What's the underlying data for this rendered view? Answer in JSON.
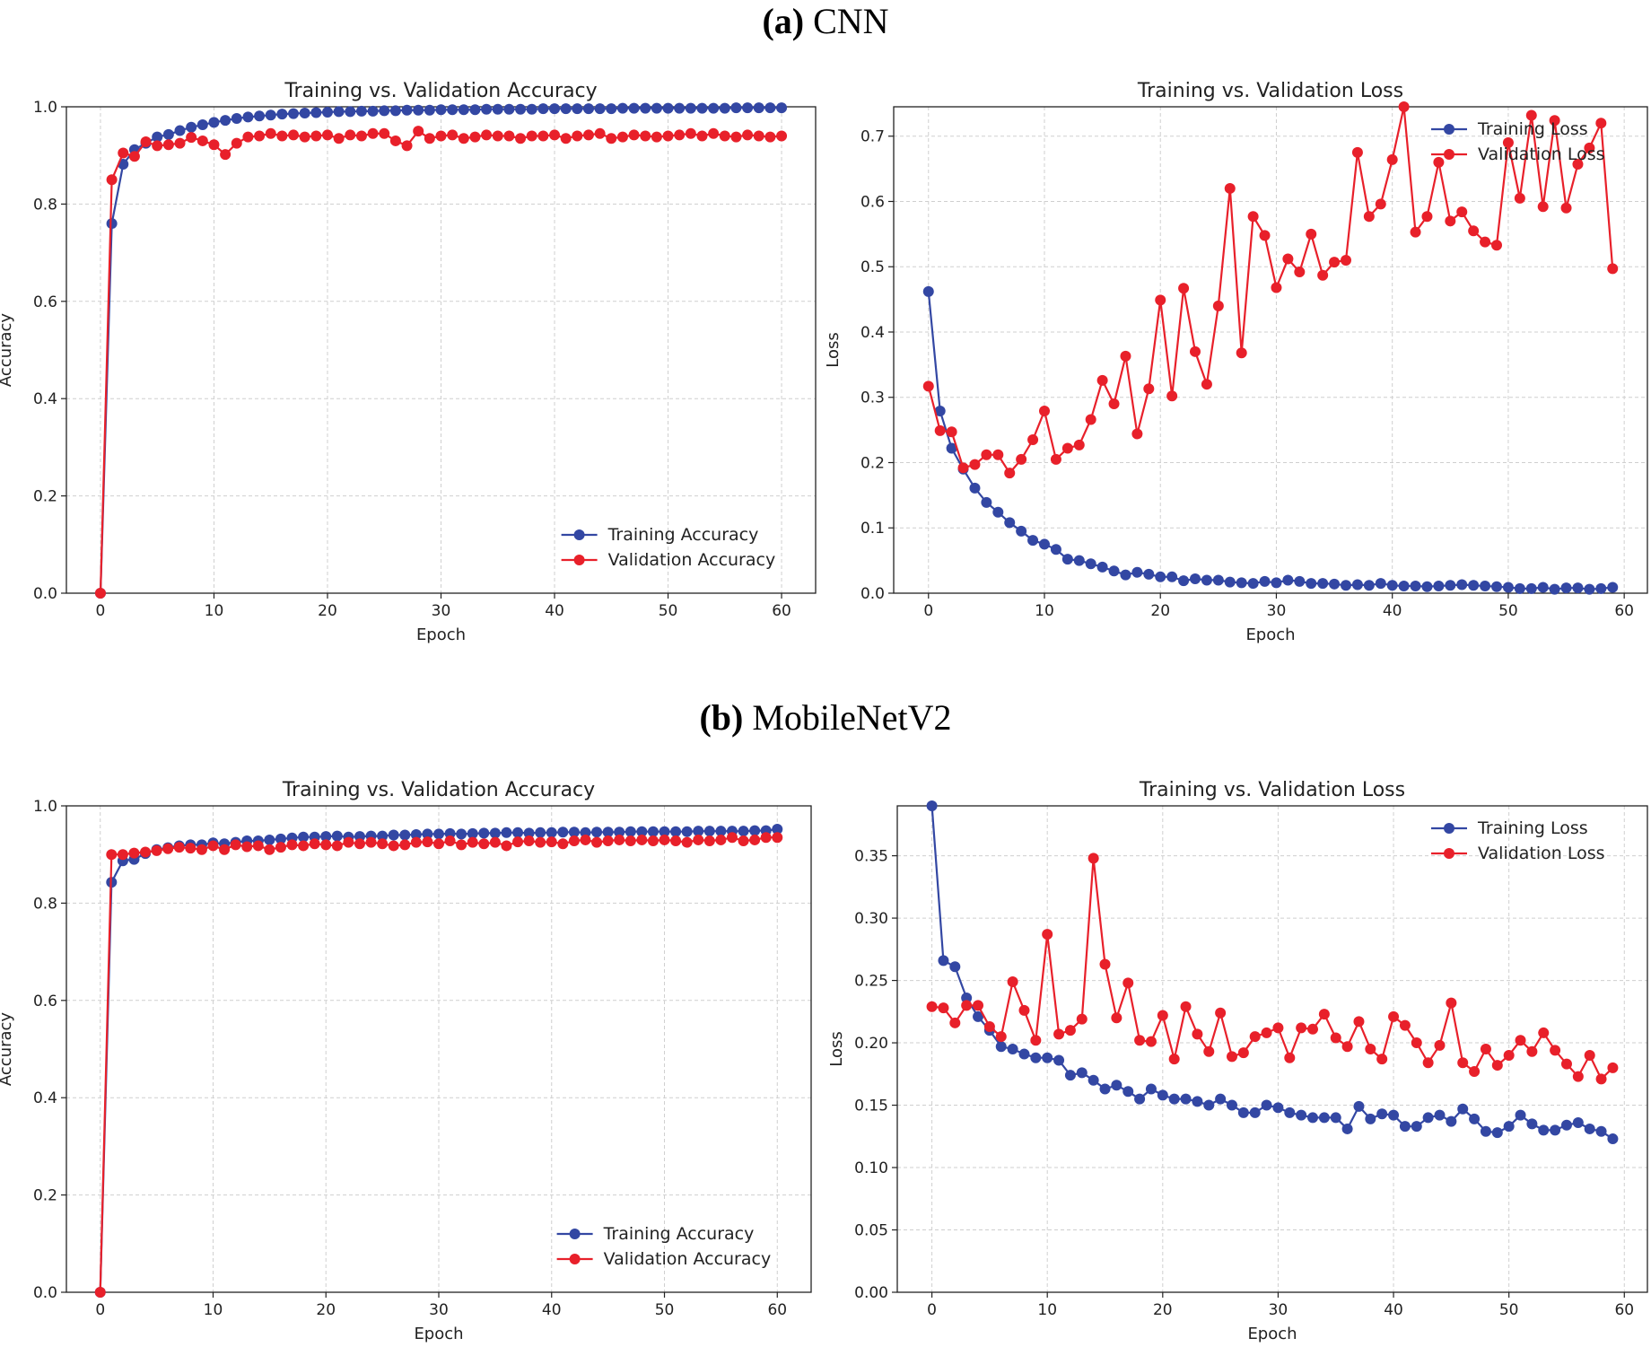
{
  "captions": {
    "a": {
      "letter": "(a)",
      "name": "CNN"
    },
    "b": {
      "letter": "(b)",
      "name": "MobileNetV2"
    }
  },
  "colors": {
    "training": "#3347a3",
    "validation": "#e8202a"
  },
  "chart_data": [
    {
      "id": "cnn-acc",
      "type": "line",
      "title": "Training vs. Validation Accuracy",
      "xlabel": "Epoch",
      "ylabel": "Accuracy",
      "xlim": [
        -3,
        63
      ],
      "ylim": [
        0,
        1.0
      ],
      "xticks": [
        0,
        10,
        20,
        30,
        40,
        50,
        60
      ],
      "yticks": [
        0.0,
        0.2,
        0.4,
        0.6,
        0.8,
        1.0
      ],
      "ytick_labels": [
        "0.0",
        "0.2",
        "0.4",
        "0.6",
        "0.8",
        "1.0"
      ],
      "legend": "lower-right",
      "grid": true,
      "x": [
        0,
        1,
        2,
        3,
        4,
        5,
        6,
        7,
        8,
        9,
        10,
        11,
        12,
        13,
        14,
        15,
        16,
        17,
        18,
        19,
        20,
        21,
        22,
        23,
        24,
        25,
        26,
        27,
        28,
        29,
        30,
        31,
        32,
        33,
        34,
        35,
        36,
        37,
        38,
        39,
        40,
        41,
        42,
        43,
        44,
        45,
        46,
        47,
        48,
        49,
        50,
        51,
        52,
        53,
        54,
        55,
        56,
        57,
        58,
        59,
        60
      ],
      "series": [
        {
          "name": "Training Accuracy",
          "color_key": "training",
          "values": [
            0.0,
            0.76,
            0.882,
            0.912,
            0.925,
            0.938,
            0.943,
            0.951,
            0.958,
            0.963,
            0.968,
            0.972,
            0.976,
            0.979,
            0.981,
            0.983,
            0.985,
            0.986,
            0.987,
            0.988,
            0.989,
            0.99,
            0.99,
            0.991,
            0.991,
            0.992,
            0.992,
            0.993,
            0.993,
            0.993,
            0.994,
            0.994,
            0.994,
            0.994,
            0.995,
            0.995,
            0.995,
            0.995,
            0.995,
            0.996,
            0.996,
            0.996,
            0.996,
            0.996,
            0.996,
            0.996,
            0.997,
            0.997,
            0.997,
            0.997,
            0.997,
            0.997,
            0.997,
            0.997,
            0.997,
            0.997,
            0.998,
            0.998,
            0.998,
            0.998,
            0.998
          ]
        },
        {
          "name": "Validation Accuracy",
          "color_key": "validation",
          "values": [
            0.0,
            0.85,
            0.905,
            0.898,
            0.928,
            0.92,
            0.922,
            0.925,
            0.937,
            0.93,
            0.922,
            0.902,
            0.925,
            0.938,
            0.94,
            0.945,
            0.94,
            0.942,
            0.938,
            0.94,
            0.942,
            0.935,
            0.942,
            0.94,
            0.945,
            0.945,
            0.93,
            0.92,
            0.95,
            0.935,
            0.94,
            0.942,
            0.935,
            0.938,
            0.942,
            0.94,
            0.94,
            0.935,
            0.94,
            0.94,
            0.942,
            0.935,
            0.94,
            0.942,
            0.945,
            0.935,
            0.938,
            0.942,
            0.94,
            0.938,
            0.94,
            0.942,
            0.945,
            0.94,
            0.945,
            0.94,
            0.938,
            0.942,
            0.94,
            0.938,
            0.94
          ]
        }
      ]
    },
    {
      "id": "cnn-loss",
      "type": "line",
      "title": "Training vs. Validation Loss",
      "xlabel": "Epoch",
      "ylabel": "Loss",
      "xlim": [
        -3,
        62
      ],
      "ylim": [
        0,
        0.745
      ],
      "xticks": [
        0,
        10,
        20,
        30,
        40,
        50,
        60
      ],
      "yticks": [
        0.0,
        0.1,
        0.2,
        0.3,
        0.4,
        0.5,
        0.6,
        0.7
      ],
      "ytick_labels": [
        "0.0",
        "0.1",
        "0.2",
        "0.3",
        "0.4",
        "0.5",
        "0.6",
        "0.7"
      ],
      "legend": "top-right",
      "grid": true,
      "x": [
        0,
        1,
        2,
        3,
        4,
        5,
        6,
        7,
        8,
        9,
        10,
        11,
        12,
        13,
        14,
        15,
        16,
        17,
        18,
        19,
        20,
        21,
        22,
        23,
        24,
        25,
        26,
        27,
        28,
        29,
        30,
        31,
        32,
        33,
        34,
        35,
        36,
        37,
        38,
        39,
        40,
        41,
        42,
        43,
        44,
        45,
        46,
        47,
        48,
        49,
        50,
        51,
        52,
        53,
        54,
        55,
        56,
        57,
        58,
        59
      ],
      "series": [
        {
          "name": "Training Loss",
          "color_key": "training",
          "values": [
            0.462,
            0.279,
            0.222,
            0.19,
            0.161,
            0.139,
            0.124,
            0.108,
            0.095,
            0.081,
            0.075,
            0.067,
            0.052,
            0.05,
            0.045,
            0.04,
            0.034,
            0.028,
            0.032,
            0.029,
            0.025,
            0.025,
            0.019,
            0.022,
            0.02,
            0.02,
            0.017,
            0.016,
            0.015,
            0.018,
            0.016,
            0.02,
            0.018,
            0.015,
            0.015,
            0.014,
            0.012,
            0.013,
            0.012,
            0.015,
            0.012,
            0.011,
            0.011,
            0.01,
            0.011,
            0.012,
            0.013,
            0.012,
            0.011,
            0.01,
            0.009,
            0.007,
            0.007,
            0.009,
            0.006,
            0.008,
            0.008,
            0.006,
            0.007,
            0.009
          ]
        },
        {
          "name": "Validation Loss",
          "color_key": "validation",
          "values": [
            0.317,
            0.249,
            0.247,
            0.192,
            0.197,
            0.212,
            0.212,
            0.184,
            0.205,
            0.235,
            0.279,
            0.205,
            0.222,
            0.227,
            0.266,
            0.326,
            0.29,
            0.363,
            0.244,
            0.313,
            0.449,
            0.302,
            0.467,
            0.37,
            0.32,
            0.44,
            0.62,
            0.368,
            0.577,
            0.548,
            0.468,
            0.512,
            0.492,
            0.55,
            0.487,
            0.507,
            0.51,
            0.675,
            0.577,
            0.596,
            0.664,
            0.745,
            0.553,
            0.577,
            0.66,
            0.57,
            0.584,
            0.555,
            0.538,
            0.533,
            0.69,
            0.605,
            0.732,
            0.592,
            0.724,
            0.59,
            0.657,
            0.682,
            0.72,
            0.497
          ]
        }
      ]
    },
    {
      "id": "mnv2-acc",
      "type": "line",
      "title": "Training vs. Validation Accuracy",
      "xlabel": "Epoch",
      "ylabel": "Accuracy",
      "xlim": [
        -3,
        63
      ],
      "ylim": [
        0,
        1.0
      ],
      "xticks": [
        0,
        10,
        20,
        30,
        40,
        50,
        60
      ],
      "yticks": [
        0.0,
        0.2,
        0.4,
        0.6,
        0.8,
        1.0
      ],
      "ytick_labels": [
        "0.0",
        "0.2",
        "0.4",
        "0.6",
        "0.8",
        "1.0"
      ],
      "legend": "lower-right",
      "grid": true,
      "x": [
        0,
        1,
        2,
        3,
        4,
        5,
        6,
        7,
        8,
        9,
        10,
        11,
        12,
        13,
        14,
        15,
        16,
        17,
        18,
        19,
        20,
        21,
        22,
        23,
        24,
        25,
        26,
        27,
        28,
        29,
        30,
        31,
        32,
        33,
        34,
        35,
        36,
        37,
        38,
        39,
        40,
        41,
        42,
        43,
        44,
        45,
        46,
        47,
        48,
        49,
        50,
        51,
        52,
        53,
        54,
        55,
        56,
        57,
        58,
        59,
        60
      ],
      "series": [
        {
          "name": "Training Accuracy",
          "color_key": "training",
          "values": [
            0.0,
            0.843,
            0.887,
            0.89,
            0.902,
            0.91,
            0.914,
            0.918,
            0.92,
            0.92,
            0.924,
            0.922,
            0.925,
            0.928,
            0.928,
            0.93,
            0.932,
            0.934,
            0.936,
            0.936,
            0.937,
            0.938,
            0.936,
            0.937,
            0.938,
            0.938,
            0.94,
            0.94,
            0.941,
            0.942,
            0.942,
            0.943,
            0.942,
            0.943,
            0.944,
            0.944,
            0.945,
            0.945,
            0.944,
            0.945,
            0.945,
            0.946,
            0.946,
            0.945,
            0.946,
            0.946,
            0.946,
            0.947,
            0.947,
            0.947,
            0.947,
            0.947,
            0.947,
            0.948,
            0.948,
            0.948,
            0.948,
            0.948,
            0.949,
            0.949,
            0.952
          ]
        },
        {
          "name": "Validation Accuracy",
          "color_key": "validation",
          "values": [
            0.0,
            0.9,
            0.9,
            0.903,
            0.905,
            0.908,
            0.912,
            0.915,
            0.913,
            0.91,
            0.918,
            0.91,
            0.92,
            0.916,
            0.918,
            0.91,
            0.915,
            0.92,
            0.918,
            0.922,
            0.92,
            0.918,
            0.925,
            0.922,
            0.925,
            0.922,
            0.918,
            0.92,
            0.925,
            0.926,
            0.922,
            0.928,
            0.92,
            0.925,
            0.922,
            0.925,
            0.918,
            0.926,
            0.928,
            0.925,
            0.926,
            0.922,
            0.928,
            0.93,
            0.925,
            0.928,
            0.93,
            0.928,
            0.93,
            0.928,
            0.93,
            0.928,
            0.925,
            0.93,
            0.928,
            0.93,
            0.935,
            0.928,
            0.93,
            0.935,
            0.935
          ]
        }
      ]
    },
    {
      "id": "mnv2-loss",
      "type": "line",
      "title": "Training vs. Validation Loss",
      "xlabel": "Epoch",
      "ylabel": "Loss",
      "xlim": [
        -3,
        62
      ],
      "ylim": [
        0,
        0.39
      ],
      "xticks": [
        0,
        10,
        20,
        30,
        40,
        50,
        60
      ],
      "yticks": [
        0.0,
        0.05,
        0.1,
        0.15,
        0.2,
        0.25,
        0.3,
        0.35
      ],
      "ytick_labels": [
        "0.00",
        "0.05",
        "0.10",
        "0.15",
        "0.20",
        "0.25",
        "0.30",
        "0.35"
      ],
      "legend": "top-right",
      "grid": true,
      "x": [
        0,
        1,
        2,
        3,
        4,
        5,
        6,
        7,
        8,
        9,
        10,
        11,
        12,
        13,
        14,
        15,
        16,
        17,
        18,
        19,
        20,
        21,
        22,
        23,
        24,
        25,
        26,
        27,
        28,
        29,
        30,
        31,
        32,
        33,
        34,
        35,
        36,
        37,
        38,
        39,
        40,
        41,
        42,
        43,
        44,
        45,
        46,
        47,
        48,
        49,
        50,
        51,
        52,
        53,
        54,
        55,
        56,
        57,
        58,
        59
      ],
      "series": [
        {
          "name": "Training Loss",
          "color_key": "training",
          "values": [
            0.39,
            0.266,
            0.261,
            0.236,
            0.221,
            0.21,
            0.197,
            0.195,
            0.191,
            0.188,
            0.188,
            0.186,
            0.174,
            0.176,
            0.17,
            0.163,
            0.166,
            0.161,
            0.155,
            0.163,
            0.158,
            0.155,
            0.155,
            0.153,
            0.15,
            0.155,
            0.15,
            0.144,
            0.144,
            0.15,
            0.148,
            0.144,
            0.142,
            0.14,
            0.14,
            0.14,
            0.131,
            0.149,
            0.139,
            0.143,
            0.142,
            0.133,
            0.133,
            0.14,
            0.142,
            0.137,
            0.147,
            0.139,
            0.129,
            0.128,
            0.133,
            0.142,
            0.135,
            0.13,
            0.13,
            0.134,
            0.136,
            0.131,
            0.129,
            0.123
          ]
        },
        {
          "name": "Validation Loss",
          "color_key": "validation",
          "values": [
            0.229,
            0.228,
            0.216,
            0.23,
            0.23,
            0.213,
            0.205,
            0.249,
            0.226,
            0.202,
            0.287,
            0.207,
            0.21,
            0.219,
            0.348,
            0.263,
            0.22,
            0.248,
            0.202,
            0.201,
            0.222,
            0.187,
            0.229,
            0.207,
            0.193,
            0.224,
            0.189,
            0.192,
            0.205,
            0.208,
            0.212,
            0.188,
            0.212,
            0.211,
            0.223,
            0.204,
            0.197,
            0.217,
            0.195,
            0.187,
            0.221,
            0.214,
            0.2,
            0.184,
            0.198,
            0.232,
            0.184,
            0.177,
            0.195,
            0.182,
            0.19,
            0.202,
            0.193,
            0.208,
            0.194,
            0.183,
            0.173,
            0.19,
            0.171,
            0.18
          ]
        }
      ]
    }
  ]
}
